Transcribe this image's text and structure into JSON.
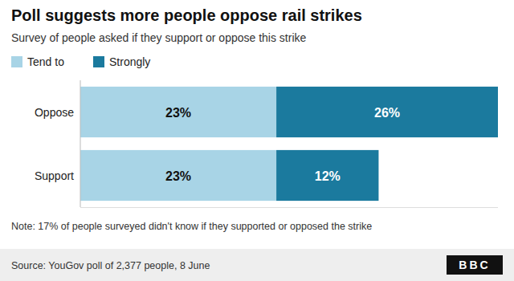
{
  "chart_data": {
    "type": "bar",
    "orientation": "horizontal",
    "stacked": true,
    "title": "Poll suggests more people oppose rail strikes",
    "subtitle": "Survey of people asked if they support or oppose this strike",
    "categories": [
      "Oppose",
      "Support"
    ],
    "series": [
      {
        "name": "Tend to",
        "color": "#a8d4e6",
        "values": [
          23,
          23
        ],
        "value_labels": [
          "23%",
          "23%"
        ]
      },
      {
        "name": "Strongly",
        "color": "#1b7a9e",
        "values": [
          26,
          12
        ],
        "value_labels": [
          "26%",
          "12%"
        ]
      }
    ],
    "xlim": [
      0,
      49
    ],
    "data_labels": true,
    "tick_labels": "y",
    "grid": false,
    "legend": "top-left",
    "annotations": [
      "Note: 17% of people surveyed didn't know if they supported or opposed the strike",
      "Source: YouGov poll of 2,377 people, 8 June",
      "BBC"
    ]
  }
}
